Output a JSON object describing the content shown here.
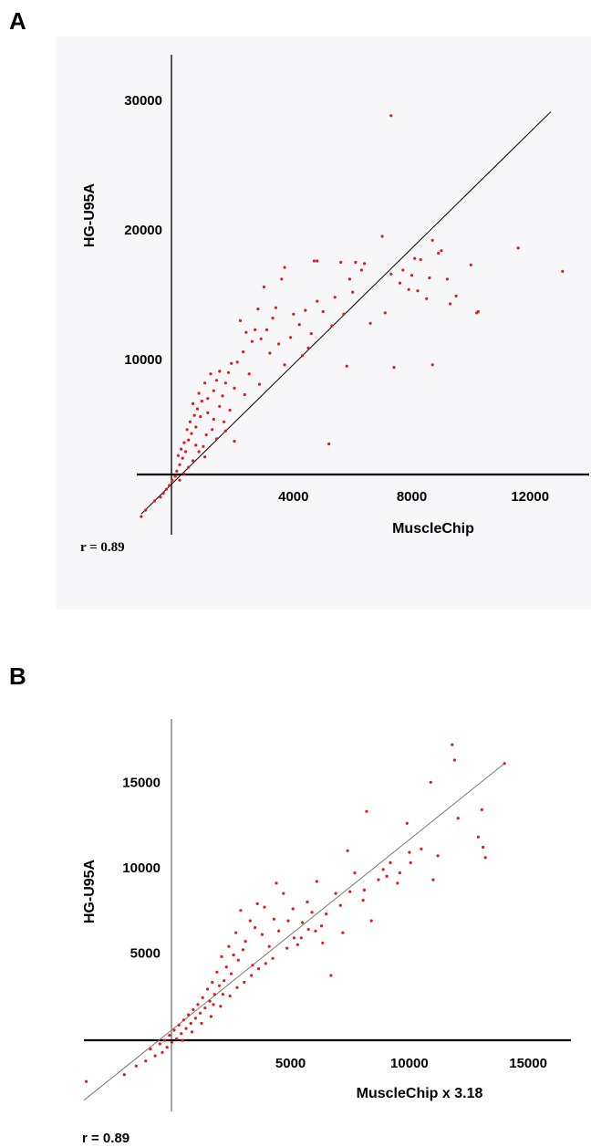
{
  "panels": [
    {
      "letter": "A",
      "r_text": "r = 0.89"
    },
    {
      "letter": "B",
      "r_text": "r = 0.89"
    }
  ],
  "colors": {
    "points": "#e41a1c",
    "axis": "#000000",
    "fit_line_a": "#000000",
    "fit_line_b": "#777777",
    "panel_a_bg": "#f7f7f9"
  },
  "chart_data": [
    {
      "type": "scatter",
      "panel": "A",
      "title": "",
      "xlabel": "MuscleChip",
      "ylabel": "HG-U95A",
      "xticks": [
        4000,
        8000,
        12000
      ],
      "yticks": [
        10000,
        20000,
        30000
      ],
      "xlim": [
        -1300,
        14000
      ],
      "ylim": [
        -3500,
        33500
      ],
      "grid": false,
      "fit_line": {
        "x": [
          -1150,
          12700
        ],
        "y": [
          -1900,
          29100
        ]
      },
      "annotation": "r = 0.89",
      "points": [
        [
          7300,
          28800
        ],
        [
          13100,
          16800
        ],
        [
          11600,
          18600
        ],
        [
          10200,
          13600
        ],
        [
          10000,
          17300
        ],
        [
          9500,
          14900
        ],
        [
          9300,
          14300
        ],
        [
          9000,
          18400
        ],
        [
          8700,
          19200
        ],
        [
          8700,
          9600
        ],
        [
          8600,
          16300
        ],
        [
          8500,
          14700
        ],
        [
          8300,
          17700
        ],
        [
          8200,
          15300
        ],
        [
          8100,
          17800
        ],
        [
          8000,
          16500
        ],
        [
          7900,
          15400
        ],
        [
          7700,
          16900
        ],
        [
          7400,
          9400
        ],
        [
          7300,
          16600
        ],
        [
          7100,
          13600
        ],
        [
          7000,
          19500
        ],
        [
          6400,
          17400
        ],
        [
          6300,
          16900
        ],
        [
          6100,
          17500
        ],
        [
          6000,
          15200
        ],
        [
          5900,
          16200
        ],
        [
          5800,
          9500
        ],
        [
          5700,
          13500
        ],
        [
          5600,
          17500
        ],
        [
          5400,
          14800
        ],
        [
          5300,
          12600
        ],
        [
          5200,
          3500
        ],
        [
          5000,
          13700
        ],
        [
          4800,
          17600
        ],
        [
          4800,
          14500
        ],
        [
          4700,
          17600
        ],
        [
          4600,
          12000
        ],
        [
          4500,
          10900
        ],
        [
          4400,
          13800
        ],
        [
          4200,
          12700
        ],
        [
          4000,
          13500
        ],
        [
          3900,
          11700
        ],
        [
          3700,
          17100
        ],
        [
          3600,
          16200
        ],
        [
          3500,
          11200
        ],
        [
          3400,
          14000
        ],
        [
          3300,
          13200
        ],
        [
          3200,
          10500
        ],
        [
          3100,
          12300
        ],
        [
          3000,
          15600
        ],
        [
          2900,
          11600
        ],
        [
          2800,
          13900
        ],
        [
          2700,
          12300
        ],
        [
          2600,
          11400
        ],
        [
          2500,
          8900
        ],
        [
          2400,
          12100
        ],
        [
          2300,
          10600
        ],
        [
          2200,
          13000
        ],
        [
          2100,
          9800
        ],
        [
          2000,
          7800
        ],
        [
          2000,
          3700
        ],
        [
          1900,
          9700
        ],
        [
          1800,
          9000
        ],
        [
          1700,
          8200
        ],
        [
          1600,
          7200
        ],
        [
          1500,
          9100
        ],
        [
          1400,
          8400
        ],
        [
          1300,
          7600
        ],
        [
          1200,
          8900
        ],
        [
          1100,
          7000
        ],
        [
          1000,
          8200
        ],
        [
          900,
          6800
        ],
        [
          850,
          5600
        ],
        [
          800,
          7400
        ],
        [
          750,
          6200
        ],
        [
          700,
          4800
        ],
        [
          650,
          5700
        ],
        [
          600,
          6600
        ],
        [
          550,
          4300
        ],
        [
          500,
          5200
        ],
        [
          450,
          3800
        ],
        [
          400,
          4600
        ],
        [
          350,
          2900
        ],
        [
          300,
          3600
        ],
        [
          250,
          2400
        ],
        [
          200,
          3100
        ],
        [
          150,
          1900
        ],
        [
          100,
          2600
        ],
        [
          50,
          1400
        ],
        [
          0,
          1000
        ],
        [
          -100,
          700
        ],
        [
          -200,
          300
        ],
        [
          -300,
          0
        ],
        [
          -400,
          -300
        ],
        [
          -500,
          -600
        ],
        [
          -700,
          -900
        ],
        [
          -1000,
          -1600
        ],
        [
          -1150,
          -2100
        ],
        [
          1050,
          4200
        ],
        [
          950,
          3300
        ],
        [
          1250,
          4600
        ],
        [
          1400,
          3900
        ],
        [
          1650,
          5200
        ],
        [
          1850,
          6100
        ],
        [
          2350,
          7300
        ],
        [
          2850,
          8100
        ],
        [
          3700,
          9600
        ],
        [
          4300,
          10300
        ],
        [
          6600,
          12800
        ],
        [
          7600,
          15900
        ],
        [
          9200,
          16200
        ],
        [
          10250,
          13700
        ],
        [
          8900,
          18200
        ],
        [
          600,
          2200
        ],
        [
          450,
          1700
        ],
        [
          300,
          1200
        ],
        [
          150,
          700
        ],
        [
          800,
          2900
        ],
        [
          700,
          3400
        ],
        [
          1000,
          2500
        ],
        [
          1100,
          5900
        ],
        [
          1300,
          5400
        ],
        [
          1500,
          6400
        ],
        [
          1700,
          4500
        ]
      ]
    },
    {
      "type": "scatter",
      "panel": "B",
      "title": "",
      "xlabel": "MuscleChip x 3.18",
      "ylabel": "HG-U95A",
      "xticks": [
        5000,
        10000,
        15000
      ],
      "yticks": [
        5000,
        10000,
        15000
      ],
      "xlim": [
        -3700,
        16800
      ],
      "ylim": [
        -4250,
        18700
      ],
      "grid": false,
      "fit_line": {
        "x": [
          -3700,
          14000
        ],
        "y": [
          -3600,
          16100
        ]
      },
      "annotation": "r = 0.89",
      "points": [
        [
          11800,
          17200
        ],
        [
          11900,
          16300
        ],
        [
          14000,
          16100
        ],
        [
          10900,
          15000
        ],
        [
          13100,
          11200
        ],
        [
          13200,
          10600
        ],
        [
          12900,
          11800
        ],
        [
          11000,
          9300
        ],
        [
          11200,
          10700
        ],
        [
          10000,
          10900
        ],
        [
          10500,
          11100
        ],
        [
          9900,
          12600
        ],
        [
          9500,
          9100
        ],
        [
          9600,
          9700
        ],
        [
          9200,
          10300
        ],
        [
          8900,
          9900
        ],
        [
          8700,
          9300
        ],
        [
          8400,
          6900
        ],
        [
          8200,
          13300
        ],
        [
          8100,
          8700
        ],
        [
          7700,
          9700
        ],
        [
          7500,
          8600
        ],
        [
          7400,
          11000
        ],
        [
          7200,
          6200
        ],
        [
          7100,
          7800
        ],
        [
          6900,
          8500
        ],
        [
          6700,
          3700
        ],
        [
          6500,
          7300
        ],
        [
          6300,
          6600
        ],
        [
          6100,
          9200
        ],
        [
          5900,
          7400
        ],
        [
          5700,
          8000
        ],
        [
          5500,
          6800
        ],
        [
          5300,
          5500
        ],
        [
          5100,
          7600
        ],
        [
          4900,
          6900
        ],
        [
          4700,
          8500
        ],
        [
          4500,
          6300
        ],
        [
          4400,
          9100
        ],
        [
          4300,
          7000
        ],
        [
          4100,
          5400
        ],
        [
          3900,
          7700
        ],
        [
          3800,
          6100
        ],
        [
          3600,
          7900
        ],
        [
          3500,
          6500
        ],
        [
          3400,
          4300
        ],
        [
          3300,
          6900
        ],
        [
          3100,
          5700
        ],
        [
          3000,
          5200
        ],
        [
          2900,
          7500
        ],
        [
          2800,
          4600
        ],
        [
          2700,
          6200
        ],
        [
          2600,
          4900
        ],
        [
          2500,
          3800
        ],
        [
          2400,
          5400
        ],
        [
          2300,
          4200
        ],
        [
          2200,
          3400
        ],
        [
          2100,
          4800
        ],
        [
          2000,
          3100
        ],
        [
          1900,
          3900
        ],
        [
          1800,
          2600
        ],
        [
          1700,
          3300
        ],
        [
          1600,
          2200
        ],
        [
          1500,
          2900
        ],
        [
          1400,
          1800
        ],
        [
          1300,
          2400
        ],
        [
          1200,
          1500
        ],
        [
          1100,
          2000
        ],
        [
          1000,
          1200
        ],
        [
          900,
          1700
        ],
        [
          800,
          900
        ],
        [
          700,
          1400
        ],
        [
          600,
          600
        ],
        [
          500,
          1100
        ],
        [
          400,
          300
        ],
        [
          300,
          800
        ],
        [
          200,
          0
        ],
        [
          100,
          500
        ],
        [
          0,
          -200
        ],
        [
          -100,
          200
        ],
        [
          -200,
          -500
        ],
        [
          -300,
          -100
        ],
        [
          -400,
          -800
        ],
        [
          -500,
          -300
        ],
        [
          -700,
          -1000
        ],
        [
          -900,
          -600
        ],
        [
          -1100,
          -1300
        ],
        [
          -1500,
          -1600
        ],
        [
          -2000,
          -2100
        ],
        [
          -3600,
          -2500
        ],
        [
          1650,
          1300
        ],
        [
          2050,
          1900
        ],
        [
          2450,
          2500
        ],
        [
          3050,
          3300
        ],
        [
          3650,
          4100
        ],
        [
          4250,
          4700
        ],
        [
          4850,
          5300
        ],
        [
          5450,
          5900
        ],
        [
          6050,
          6300
        ],
        [
          1250,
          900
        ],
        [
          850,
          400
        ],
        [
          450,
          -100
        ],
        [
          1750,
          2000
        ],
        [
          2150,
          2600
        ],
        [
          2750,
          3000
        ],
        [
          3350,
          3700
        ],
        [
          3950,
          4400
        ],
        [
          5150,
          5900
        ],
        [
          5750,
          6400
        ],
        [
          6350,
          5600
        ],
        [
          8050,
          8100
        ],
        [
          9050,
          9500
        ],
        [
          10050,
          10300
        ],
        [
          12050,
          12900
        ],
        [
          13050,
          13400
        ]
      ]
    }
  ]
}
